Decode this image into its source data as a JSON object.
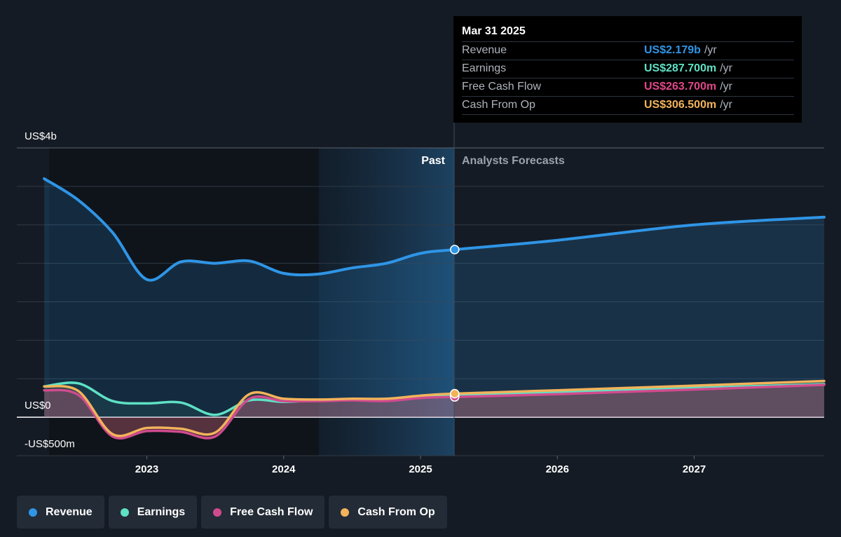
{
  "tooltip": {
    "date": "Mar 31 2025",
    "rows": [
      {
        "label": "Revenue",
        "value": "US$2.179b",
        "unit": "/yr",
        "color": "#2f95e6"
      },
      {
        "label": "Earnings",
        "value": "US$287.700m",
        "unit": "/yr",
        "color": "#5ee1c5"
      },
      {
        "label": "Free Cash Flow",
        "value": "US$263.700m",
        "unit": "/yr",
        "color": "#e0478a"
      },
      {
        "label": "Cash From Op",
        "value": "US$306.500m",
        "unit": "/yr",
        "color": "#f2b35b"
      }
    ]
  },
  "regions": {
    "past": "Past",
    "forecast": "Analysts Forecasts"
  },
  "legend": [
    {
      "label": "Revenue",
      "color": "#2f95e6"
    },
    {
      "label": "Earnings",
      "color": "#5ee1c5"
    },
    {
      "label": "Free Cash Flow",
      "color": "#d04b8e"
    },
    {
      "label": "Cash From Op",
      "color": "#f2b35b"
    }
  ],
  "chart_data": {
    "type": "line",
    "y_unit": "US$ millions",
    "ylim": [
      -500,
      3500
    ],
    "y_ticks": [
      {
        "value": 3500,
        "label": "US$4b"
      },
      {
        "value": 0,
        "label": "US$0"
      },
      {
        "value": -500,
        "label": "-US$500m"
      }
    ],
    "xlim": [
      2022.05,
      2027.95
    ],
    "x_ticks": [
      {
        "value": 2023,
        "label": "2023"
      },
      {
        "value": 2024,
        "label": "2024"
      },
      {
        "value": 2025,
        "label": "2025"
      },
      {
        "value": 2026,
        "label": "2026"
      },
      {
        "value": 2027,
        "label": "2027"
      }
    ],
    "past_end": 2025.25,
    "highlight_start": 2024.25,
    "grid": true,
    "series": [
      {
        "name": "Revenue",
        "color": "#2f95e6",
        "points": [
          [
            2022.25,
            3100
          ],
          [
            2022.5,
            2820
          ],
          [
            2022.75,
            2400
          ],
          [
            2023.0,
            1790
          ],
          [
            2023.25,
            2020
          ],
          [
            2023.5,
            2000
          ],
          [
            2023.75,
            2030
          ],
          [
            2024.0,
            1870
          ],
          [
            2024.25,
            1860
          ],
          [
            2024.5,
            1940
          ],
          [
            2024.75,
            2000
          ],
          [
            2025.0,
            2130
          ],
          [
            2025.25,
            2179
          ],
          [
            2026.0,
            2300
          ],
          [
            2027.0,
            2500
          ],
          [
            2027.95,
            2600
          ]
        ]
      },
      {
        "name": "Earnings",
        "color": "#5ee1c5",
        "points": [
          [
            2022.25,
            400
          ],
          [
            2022.5,
            440
          ],
          [
            2022.75,
            210
          ],
          [
            2023.0,
            180
          ],
          [
            2023.25,
            190
          ],
          [
            2023.5,
            30
          ],
          [
            2023.75,
            220
          ],
          [
            2024.0,
            200
          ],
          [
            2024.25,
            220
          ],
          [
            2024.5,
            230
          ],
          [
            2024.75,
            230
          ],
          [
            2025.0,
            260
          ],
          [
            2025.25,
            287.7
          ],
          [
            2026.0,
            320
          ],
          [
            2027.0,
            380
          ],
          [
            2027.95,
            430
          ]
        ]
      },
      {
        "name": "Free Cash Flow",
        "color": "#d04b8e",
        "points": [
          [
            2022.25,
            350
          ],
          [
            2022.5,
            290
          ],
          [
            2022.75,
            -250
          ],
          [
            2023.0,
            -180
          ],
          [
            2023.25,
            -190
          ],
          [
            2023.5,
            -250
          ],
          [
            2023.75,
            240
          ],
          [
            2024.0,
            210
          ],
          [
            2024.25,
            210
          ],
          [
            2024.5,
            220
          ],
          [
            2024.75,
            210
          ],
          [
            2025.0,
            250
          ],
          [
            2025.25,
            263.7
          ],
          [
            2026.0,
            300
          ],
          [
            2027.0,
            360
          ],
          [
            2027.95,
            420
          ]
        ]
      },
      {
        "name": "Cash From Op",
        "color": "#f2b35b",
        "points": [
          [
            2022.25,
            400
          ],
          [
            2022.5,
            340
          ],
          [
            2022.75,
            -220
          ],
          [
            2023.0,
            -140
          ],
          [
            2023.25,
            -150
          ],
          [
            2023.5,
            -200
          ],
          [
            2023.75,
            300
          ],
          [
            2024.0,
            240
          ],
          [
            2024.25,
            230
          ],
          [
            2024.5,
            240
          ],
          [
            2024.75,
            240
          ],
          [
            2025.0,
            280
          ],
          [
            2025.25,
            306.5
          ],
          [
            2026.0,
            350
          ],
          [
            2027.0,
            410
          ],
          [
            2027.95,
            470
          ]
        ]
      }
    ]
  }
}
